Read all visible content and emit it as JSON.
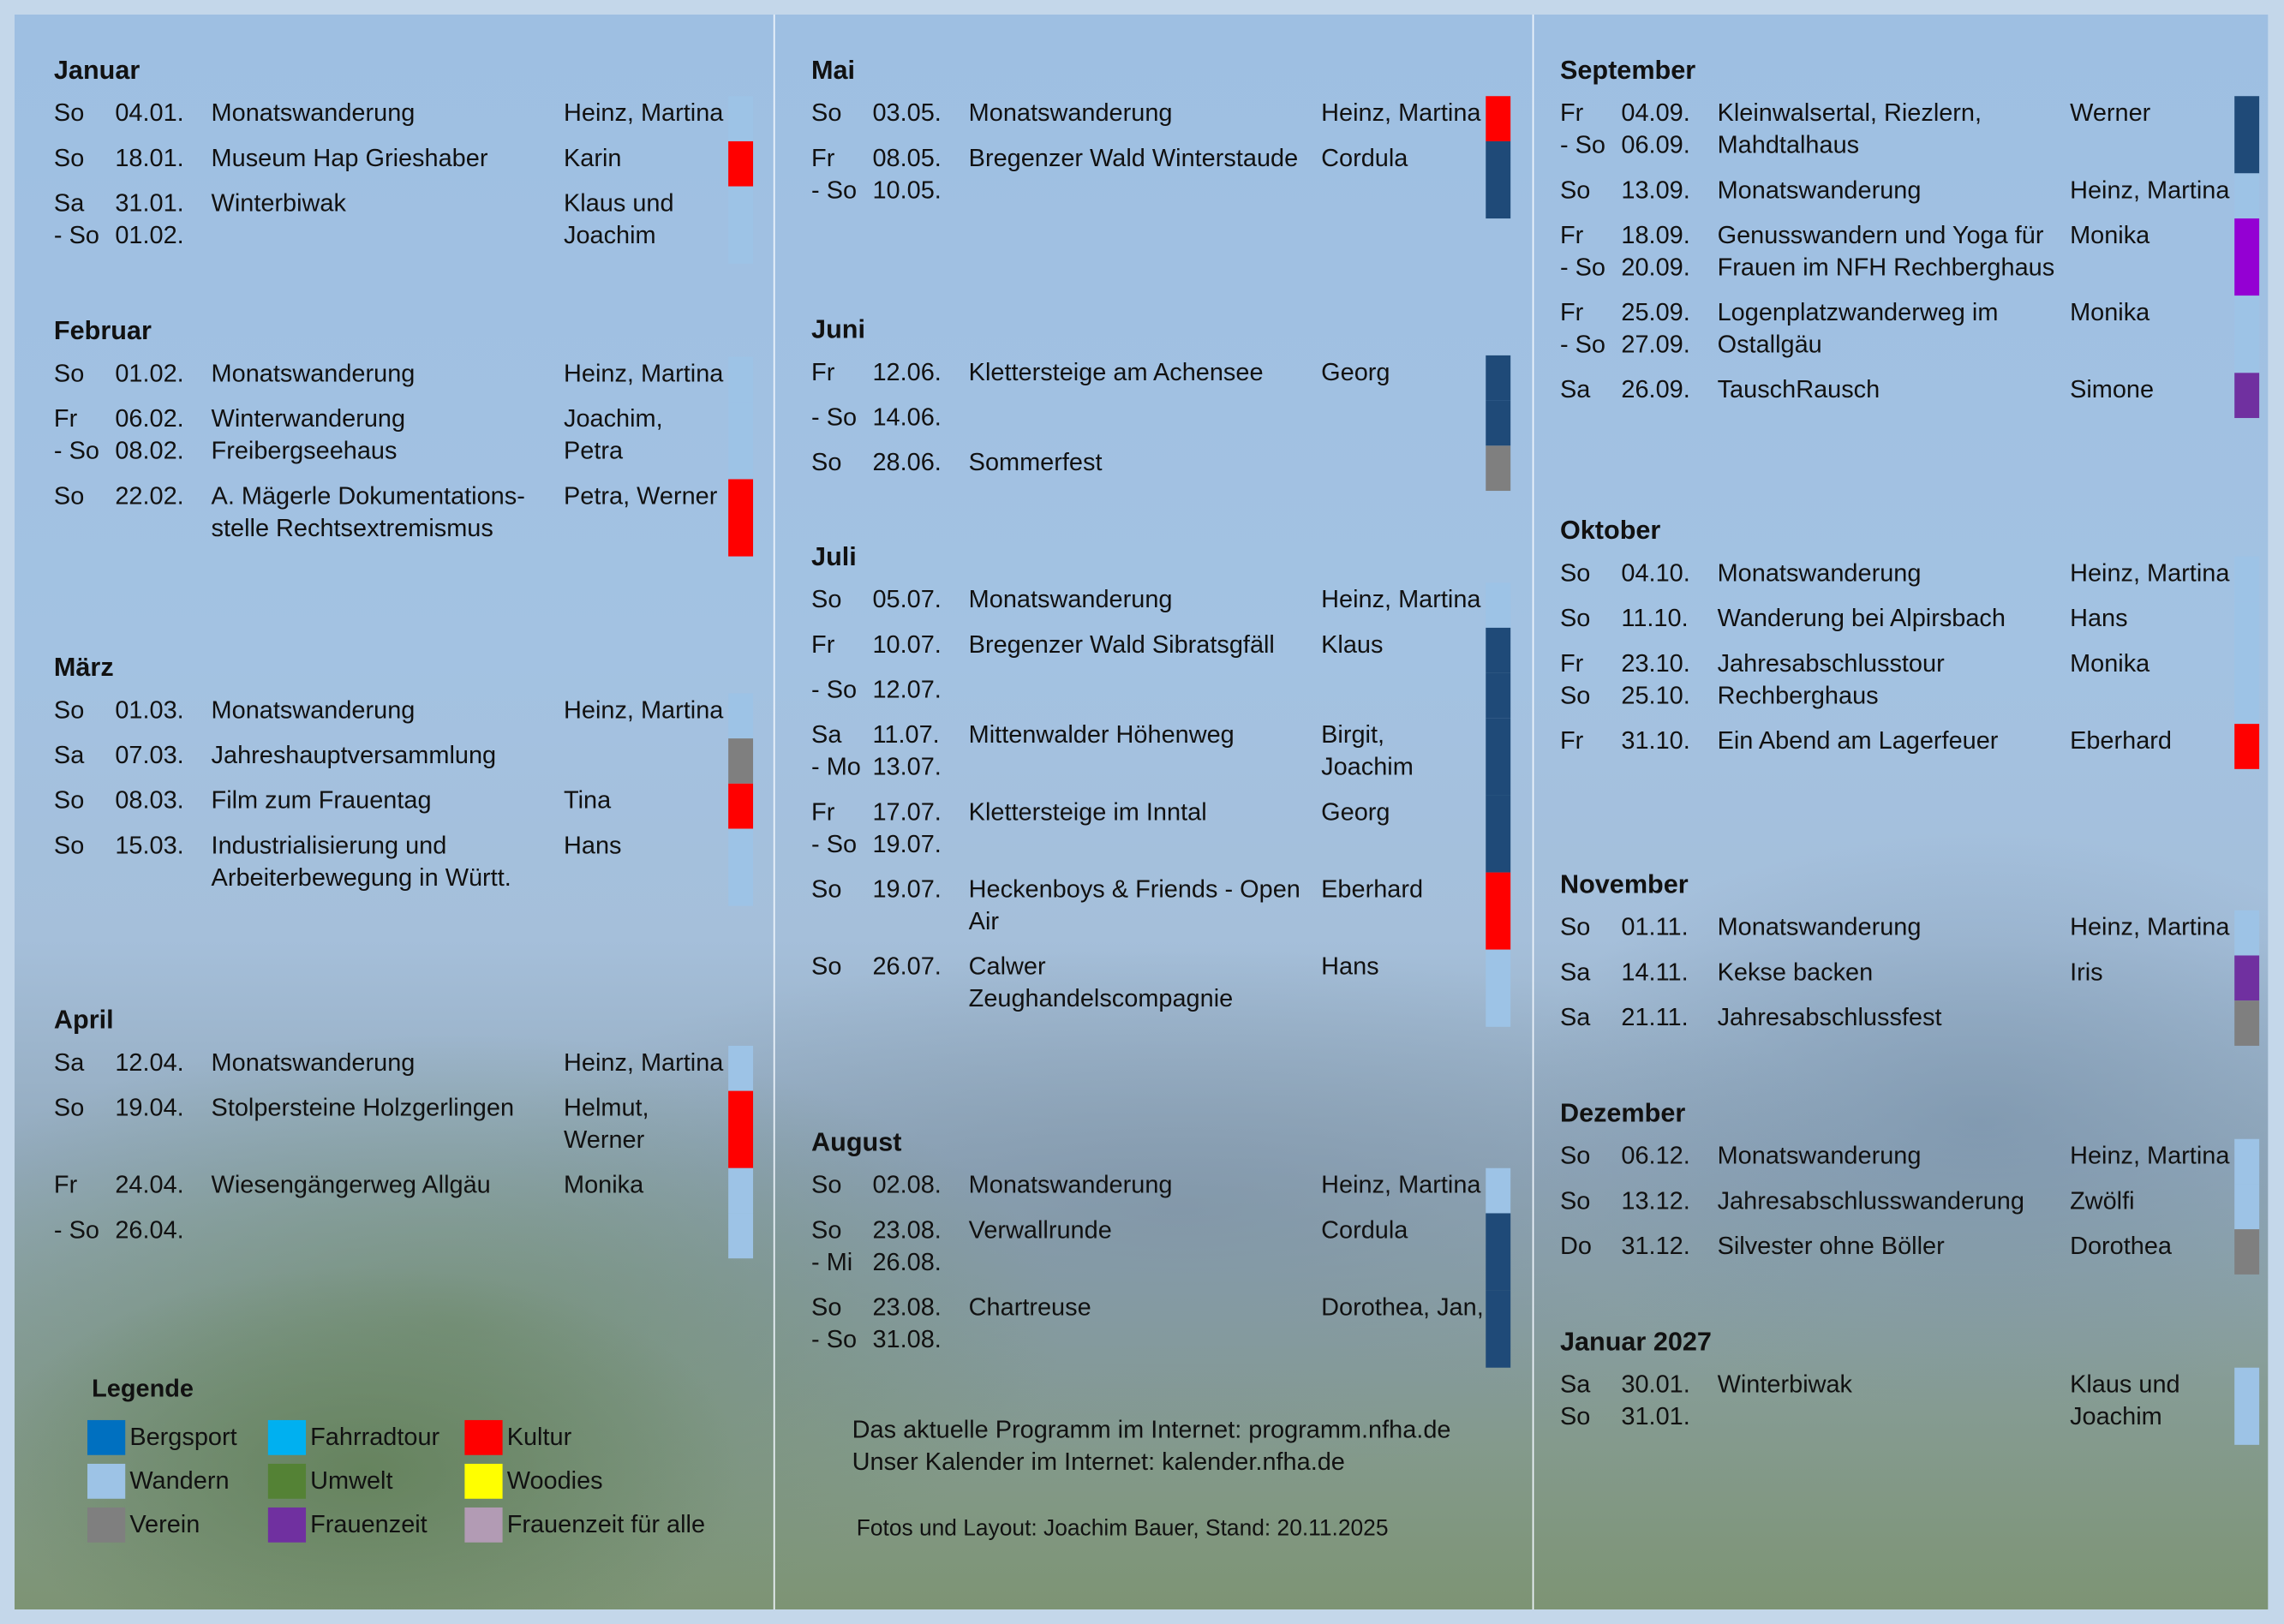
{
  "categories": {
    "bergsport": {
      "label": "Bergsport",
      "color": "#0070c0",
      "bar": "#1f4a78"
    },
    "fahrradtour": {
      "label": "Fahrradtour",
      "color": "#00b0f0",
      "bar": "#00b0f0"
    },
    "kultur": {
      "label": "Kultur",
      "color": "#ff0000",
      "bar": "#ff0000"
    },
    "wandern": {
      "label": "Wandern",
      "color": "#9dc3e6",
      "bar": "#9dc3e6"
    },
    "umwelt": {
      "label": "Umwelt",
      "color": "#548235",
      "bar": "#548235"
    },
    "woodies": {
      "label": "Woodies",
      "color": "#ffff00",
      "bar": "#ffff00"
    },
    "verein": {
      "label": "Verein",
      "color": "#7f7f7f",
      "bar": "#7f7f7f"
    },
    "frauenzeit": {
      "label": "Frauenzeit",
      "color": "#7030a0",
      "bar": "#7030a0"
    },
    "frauenzeit_alle": {
      "label": "Frauenzeit für alle",
      "color": "#b29bb4",
      "bar": "#9400d3"
    }
  },
  "legend": {
    "title": "Legende",
    "order": [
      "bergsport",
      "fahrradtour",
      "kultur",
      "wandern",
      "umwelt",
      "woodies",
      "verein",
      "frauenzeit",
      "frauenzeit_alle"
    ]
  },
  "columns": [
    {
      "months": [
        {
          "name": "Januar",
          "rows": [
            {
              "day": "So",
              "date": "04.01.",
              "title": "Monatswanderung",
              "person": "Heinz, Martina",
              "cat": "wandern"
            },
            {
              "day": "So",
              "date": "18.01.",
              "title": "Museum Hap Grieshaber",
              "person": "Karin",
              "cat": "kultur"
            },
            {
              "day": "Sa\n- So",
              "date": "31.01.\n01.02.",
              "title": "Winterbiwak",
              "person": "Klaus und\nJoachim",
              "cat": "wandern"
            }
          ]
        },
        {
          "name": "Februar",
          "rows": [
            {
              "day": "So",
              "date": "01.02.",
              "title": "Monatswanderung",
              "person": "Heinz, Martina",
              "cat": "wandern"
            },
            {
              "day": "Fr\n- So",
              "date": "06.02.\n08.02.",
              "title": "Winterwanderung\nFreibergseehaus",
              "person": "Joachim,\nPetra",
              "cat": "wandern"
            },
            {
              "day": "So",
              "date": "22.02.",
              "title": "A. Mägerle Dokumentations-\nstelle Rechtsextremismus",
              "person": "Petra, Werner",
              "cat": "kultur"
            }
          ]
        },
        {
          "name": "März",
          "rows": [
            {
              "day": "So",
              "date": "01.03.",
              "title": "Monatswanderung",
              "person": "Heinz, Martina",
              "cat": "wandern"
            },
            {
              "day": "Sa",
              "date": "07.03.",
              "title": "Jahreshauptversammlung",
              "person": "",
              "cat": "verein"
            },
            {
              "day": "So",
              "date": "08.03.",
              "title": "Film zum Frauentag",
              "person": "Tina",
              "cat": "kultur"
            },
            {
              "day": "So",
              "date": "15.03.",
              "title": "Industrialisierung und\nArbeiterbewegung in Württ.",
              "person": "Hans",
              "cat": "wandern"
            }
          ]
        },
        {
          "name": "April",
          "rows": [
            {
              "day": "Sa",
              "date": "12.04.",
              "title": "Monatswanderung",
              "person": "Heinz, Martina",
              "cat": "wandern"
            },
            {
              "day": "So",
              "date": "19.04.",
              "title": "Stolpersteine Holzgerlingen",
              "person": "Helmut,\nWerner",
              "cat": "kultur"
            },
            {
              "day": "Fr",
              "date": "24.04.",
              "title": "Wiesengängerweg Allgäu",
              "person": "Monika",
              "cat": "wandern"
            },
            {
              "day": "- So",
              "date": "26.04.",
              "title": "",
              "person": "",
              "cat": "wandern"
            }
          ]
        }
      ]
    },
    {
      "months": [
        {
          "name": "Mai",
          "rows": [
            {
              "day": "So",
              "date": "03.05.",
              "title": "Monatswanderung",
              "person": "Heinz, Martina",
              "cat": "kultur"
            },
            {
              "day": "Fr\n- So",
              "date": "08.05.\n10.05.",
              "title": "Bregenzer Wald Winterstaude",
              "person": "Cordula",
              "cat": "bergsport"
            }
          ]
        },
        {
          "name": "Juni",
          "rows": [
            {
              "day": "Fr",
              "date": "12.06.",
              "title": "Klettersteige am Achensee",
              "person": "Georg",
              "cat": "bergsport"
            },
            {
              "day": "- So",
              "date": "14.06.",
              "title": "",
              "person": "",
              "cat": "bergsport"
            },
            {
              "day": "So",
              "date": "28.06.",
              "title": "Sommerfest",
              "person": "",
              "cat": "verein"
            }
          ]
        },
        {
          "name": "Juli",
          "rows": [
            {
              "day": "So",
              "date": "05.07.",
              "title": "Monatswanderung",
              "person": "Heinz, Martina",
              "cat": "wandern"
            },
            {
              "day": "Fr",
              "date": "10.07.",
              "title": "Bregenzer Wald Sibratsgfäll",
              "person": "Klaus",
              "cat": "bergsport"
            },
            {
              "day": "- So",
              "date": "12.07.",
              "title": "",
              "person": "",
              "cat": "bergsport"
            },
            {
              "day": "Sa\n- Mo",
              "date": "11.07.\n13.07.",
              "title": "Mittenwalder Höhenweg",
              "person": "Birgit,\nJoachim",
              "cat": "bergsport"
            },
            {
              "day": "Fr\n- So",
              "date": "17.07.\n19.07.",
              "title": "Klettersteige im Inntal",
              "person": "Georg",
              "cat": "bergsport"
            },
            {
              "day": "So",
              "date": "19.07.",
              "title": "Heckenboys & Friends - Open\nAir",
              "person": "Eberhard",
              "cat": "kultur"
            },
            {
              "day": "So",
              "date": "26.07.",
              "title": "Calwer\nZeughandelscompagnie",
              "person": "Hans",
              "cat": "wandern"
            }
          ]
        },
        {
          "name": "August",
          "rows": [
            {
              "day": "So",
              "date": "02.08.",
              "title": "Monatswanderung",
              "person": "Heinz, Martina",
              "cat": "wandern"
            },
            {
              "day": "So\n- Mi",
              "date": "23.08.\n26.08.",
              "title": "Verwallrunde",
              "person": "Cordula",
              "cat": "bergsport"
            },
            {
              "day": "So\n- So",
              "date": "23.08.\n31.08.",
              "title": "Chartreuse",
              "person": "Dorothea, Jan,",
              "cat": "bergsport"
            }
          ]
        }
      ]
    },
    {
      "months": [
        {
          "name": "September",
          "rows": [
            {
              "day": "Fr\n- So",
              "date": "04.09.\n06.09.",
              "title": "Kleinwalsertal, Riezlern,\nMahdtalhaus",
              "person": "Werner",
              "cat": "bergsport"
            },
            {
              "day": "So",
              "date": "13.09.",
              "title": "Monatswanderung",
              "person": "Heinz, Martina",
              "cat": "wandern"
            },
            {
              "day": "Fr\n- So",
              "date": "18.09.\n20.09.",
              "title": "Genusswandern und Yoga für\nFrauen im NFH Rechberghaus",
              "person": "Monika",
              "cat": "frauenzeit_alle"
            },
            {
              "day": "Fr\n- So",
              "date": "25.09.\n27.09.",
              "title": "Logenplatzwanderweg im\nOstallgäu",
              "person": "Monika",
              "cat": "wandern"
            },
            {
              "day": "Sa",
              "date": "26.09.",
              "title": "TauschRausch",
              "person": "Simone",
              "cat": "frauenzeit"
            }
          ]
        },
        {
          "name": "Oktober",
          "rows": [
            {
              "day": "So",
              "date": "04.10.",
              "title": "Monatswanderung",
              "person": "Heinz, Martina",
              "cat": "wandern"
            },
            {
              "day": "So",
              "date": "11.10.",
              "title": "Wanderung bei Alpirsbach",
              "person": "Hans",
              "cat": "wandern"
            },
            {
              "day": "Fr\nSo",
              "date": "23.10.\n25.10.",
              "title": "Jahresabschlusstour\nRechberghaus",
              "person": "Monika",
              "cat": "wandern"
            },
            {
              "day": "Fr",
              "date": "31.10.",
              "title": "Ein Abend am Lagerfeuer",
              "person": "Eberhard",
              "cat": "kultur"
            }
          ]
        },
        {
          "name": "November",
          "rows": [
            {
              "day": "So",
              "date": "01.11.",
              "title": "Monatswanderung",
              "person": "Heinz, Martina",
              "cat": "wandern"
            },
            {
              "day": "Sa",
              "date": "14.11.",
              "title": "Kekse backen",
              "person": "Iris",
              "cat": "frauenzeit"
            },
            {
              "day": "Sa",
              "date": "21.11.",
              "title": "Jahresabschlussfest",
              "person": "",
              "cat": "verein"
            }
          ]
        },
        {
          "name": "Dezember",
          "rows": [
            {
              "day": "So",
              "date": "06.12.",
              "title": "Monatswanderung",
              "person": "Heinz, Martina",
              "cat": "wandern"
            },
            {
              "day": "So",
              "date": "13.12.",
              "title": "Jahresabschlusswanderung",
              "person": "Zwölfi",
              "cat": "wandern"
            },
            {
              "day": "Do",
              "date": "31.12.",
              "title": "Silvester ohne Böller",
              "person": "Dorothea",
              "cat": "verein"
            }
          ]
        },
        {
          "name": "Januar 2027",
          "rows": [
            {
              "day": "Sa\nSo",
              "date": "30.01.\n31.01.",
              "title": "Winterbiwak",
              "person": "Klaus und\nJoachim",
              "cat": "wandern"
            }
          ]
        }
      ]
    }
  ],
  "footer": {
    "program": "Das aktuelle Programm im Internet: programm.nfha.de",
    "calendar": "Unser Kalender im Internet: kalender.nfha.de",
    "credits": "Fotos und Layout: Joachim Bauer, Stand: 20.11.2025"
  }
}
